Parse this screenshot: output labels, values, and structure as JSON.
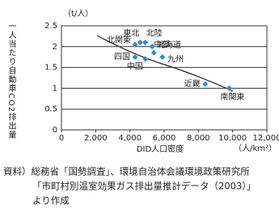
{
  "chart_data": {
    "type": "scatter",
    "y_unit": "（t/人）",
    "ylabel": "一人当たり自動車CO2排出量",
    "xlabel": "DID人口密度",
    "x_unit": "（人/km²）",
    "x": [
      4300,
      4600,
      4900,
      5300,
      4300,
      5400,
      5900,
      4900,
      8400,
      9800
    ],
    "series": [
      {
        "values": [
          2.05,
          2.1,
          2.1,
          2.0,
          1.75,
          1.85,
          1.75,
          1.7,
          1.1,
          1.0
        ],
        "color": "#2a8fc9",
        "labels": [
          "北関東",
          "東北",
          "北陸",
          "北海道",
          "四国",
          "中部",
          "九州",
          "中国",
          "近畿",
          "南関東"
        ]
      }
    ],
    "xlim": [
      0,
      12000
    ],
    "xticks": [
      0,
      {
        "value": 2000,
        "label": "2,000"
      },
      {
        "value": 4000,
        "label": "4,000"
      },
      {
        "value": 6000,
        "label": "6,000"
      },
      {
        "value": 8000,
        "label": "8,000"
      },
      {
        "value": 10000,
        "label": "10,000"
      },
      {
        "value": 12000,
        "label": "12,000"
      }
    ],
    "ylim": [
      0,
      2.5
    ],
    "yticks": [
      0,
      0.5,
      1,
      1.5,
      2,
      2.5
    ],
    "grid": true
  },
  "source": [
    "資料）総務省「国勢調査」、環境自治体会議環境政策研究所",
    "「市町村別温室効果ガス排出量推計データ（2003）」",
    "より作成"
  ]
}
